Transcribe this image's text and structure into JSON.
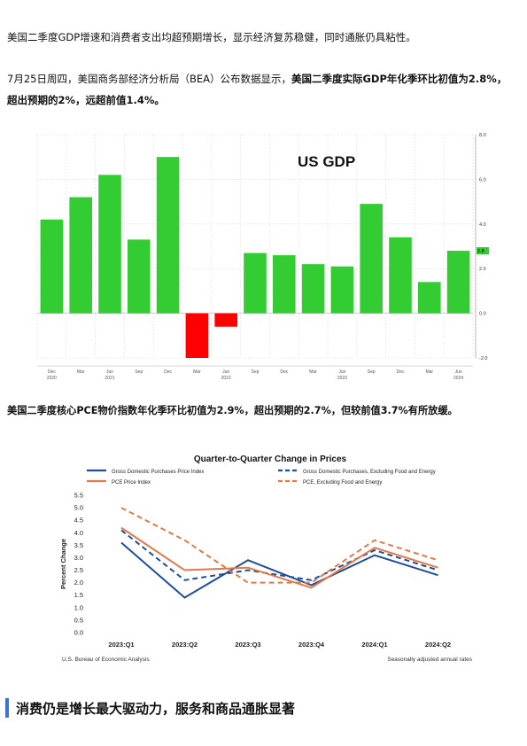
{
  "paragraphs": {
    "p1": "美国二季度GDP增速和消费者支出均超预期增长，显示经济复苏稳健，同时通胀仍具粘性。",
    "p2_normal": "7月25日周四，美国商务部经济分析局（BEA）公布数据显示，",
    "p2_bold": "美国二季度实际GDP年化季环比初值为2.8%，超出预期的2%，远超前值1.4%。",
    "p3": "美国二季度核心PCE物价指数年化季环比初值为2.9%，超出预期的2.7%，但较前值3.7%有所放缓。"
  },
  "section": {
    "title": "消费仍是增长最大驱动力，服务和商品通胀显著"
  },
  "chart_data": [
    {
      "type": "bar",
      "title": "US GDP",
      "categories": [
        "Dec 2020",
        "Mar 2021",
        "Jun 2021",
        "Sep 2021",
        "Dec 2021",
        "Mar 2022",
        "Jun 2022",
        "Sep 2022",
        "Dec 2022",
        "Mar 2023",
        "Jun 2023",
        "Sep 2023",
        "Dec 2023",
        "Mar 2024",
        "Jun 2024"
      ],
      "values": [
        4.2,
        5.2,
        6.2,
        3.3,
        7.0,
        -2.0,
        -0.6,
        2.7,
        2.6,
        2.2,
        2.1,
        4.9,
        3.4,
        1.4,
        2.8
      ],
      "ylim": [
        -2.0,
        8.0
      ],
      "yticks": [
        "8.0",
        "6.0",
        "4.0",
        "2.0",
        "0.0",
        "-2.0"
      ],
      "xtick_labels": [
        "Dec",
        "Mar",
        "Jun",
        "Sep",
        "Dec",
        "Mar",
        "Jun",
        "Sep",
        "Dec",
        "Mar",
        "Jun",
        "Sep",
        "Dec",
        "Mar",
        "Jun"
      ],
      "year_labels": [
        "2020",
        "2021",
        "2022",
        "2023",
        "2024"
      ],
      "last_value_label": "2.8",
      "colors": {
        "positive": "#33cc33",
        "negative": "#ff0000"
      }
    },
    {
      "type": "line",
      "title": "Quarter-to-Quarter Change in Prices",
      "ylabel": "Percent Change",
      "categories": [
        "2023:Q1",
        "2023:Q2",
        "2023:Q3",
        "2023:Q4",
        "2024:Q1",
        "2024:Q2"
      ],
      "ylim": [
        0.0,
        5.5
      ],
      "yticks": [
        "5.5",
        "5.0",
        "4.5",
        "4.0",
        "3.5",
        "3.0",
        "2.5",
        "2.0",
        "1.5",
        "1.0",
        "0.5",
        "0.0"
      ],
      "series": [
        {
          "name": "Gross Domestic Purchases Price Index",
          "values": [
            3.6,
            1.4,
            2.9,
            1.9,
            3.1,
            2.3
          ],
          "color": "#1f4e9a",
          "dash": false
        },
        {
          "name": "Gross Domestic Purchases, Excluding Food and Energy",
          "values": [
            4.1,
            2.1,
            2.5,
            2.1,
            3.3,
            2.5
          ],
          "color": "#1f4e9a",
          "dash": true
        },
        {
          "name": "PCE Price Index",
          "values": [
            4.2,
            2.5,
            2.6,
            1.8,
            3.4,
            2.6
          ],
          "color": "#e07a4a",
          "dash": false
        },
        {
          "name": "PCE, Excluding Food and Energy",
          "values": [
            5.0,
            3.7,
            2.0,
            2.0,
            3.7,
            2.9
          ],
          "color": "#e07a4a",
          "dash": true
        }
      ],
      "source_left": "U.S. Bureau of Economic Analysis",
      "source_right": "Seasonally adjusted annual rates"
    }
  ]
}
